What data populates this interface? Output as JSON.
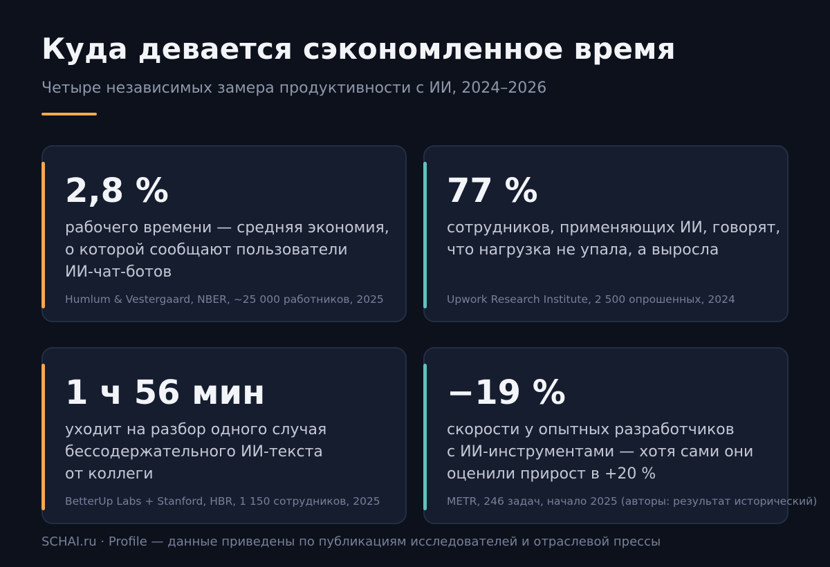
{
  "header": {
    "title": "Куда девается сэкономленное время",
    "subtitle": "Четыре независимых замера продуктивности с ИИ, 2024–2026"
  },
  "colors": {
    "background": "#0c111c",
    "card_background": "#151d2f",
    "accent_orange": "#f5a94f",
    "accent_teal": "#5ec4bd"
  },
  "cards": [
    {
      "value": "2,8 %",
      "lines": [
        "рабочего времени — средняя экономия,",
        "о которой сообщают пользователи",
        "ИИ-чат-ботов"
      ],
      "source": "Humlum & Vestergaard, NBER, ~25 000 работников, 2025",
      "accent": "#f5a94f"
    },
    {
      "value": "77 %",
      "lines": [
        "сотрудников, применяющих ИИ, говорят,",
        "что нагрузка не упала, а выросла"
      ],
      "source": "Upwork Research Institute, 2 500 опрошенных, 2024",
      "accent": "#5ec4bd"
    },
    {
      "value": "1 ч 56 мин",
      "lines": [
        "уходит на разбор одного случая",
        "бессодержательного ИИ-текста",
        "от коллеги"
      ],
      "source": "BetterUp Labs + Stanford, HBR, 1 150 сотрудников, 2025",
      "accent": "#f5a94f"
    },
    {
      "value": "−19 %",
      "lines": [
        "скорости у опытных разработчиков",
        "с ИИ-инструментами — хотя сами они",
        "оценили прирост в +20 %"
      ],
      "source": "METR, 246 задач, начало 2025 (авторы: результат исторический)",
      "accent": "#5ec4bd"
    }
  ],
  "footer": {
    "text": "SCHAI.ru · Profile — данные приведены по публикациям исследователей и отраслевой прессы"
  }
}
